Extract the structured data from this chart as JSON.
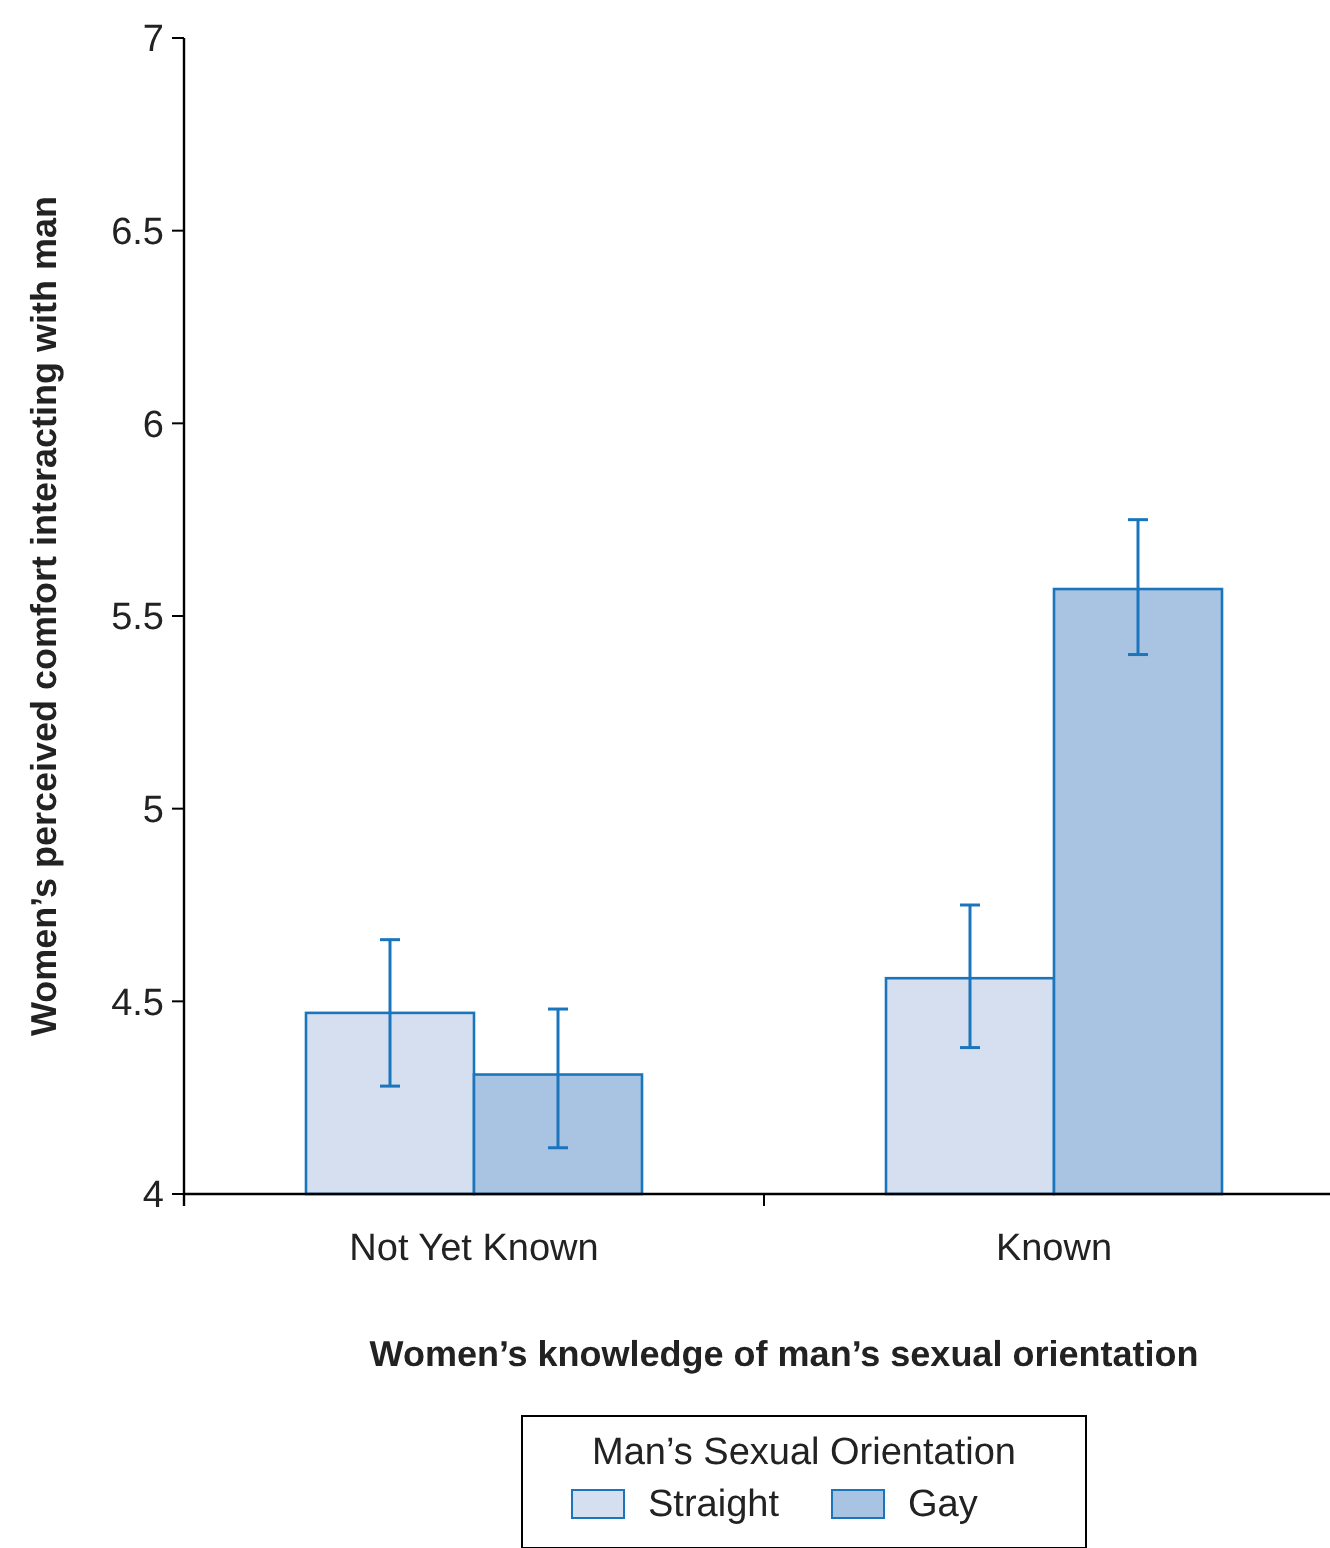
{
  "chart_data": {
    "type": "bar",
    "xlabel": "Women’s knowledge of man’s sexual orientation",
    "ylabel": "Women’s perceived comfort interacting with man",
    "legend_title": "Man’s Sexual Orientation",
    "legend": "bottom",
    "grid": false,
    "categories": [
      "Not Yet Known",
      "Known"
    ],
    "ylim": [
      4,
      7
    ],
    "yticks": [
      4,
      4.5,
      5,
      5.5,
      6,
      6.5,
      7
    ],
    "series": [
      {
        "name": "Straight",
        "color": "#d6dff0",
        "values": [
          4.47,
          4.56
        ],
        "errors": [
          [
            4.28,
            4.66
          ],
          [
            4.38,
            4.75
          ]
        ]
      },
      {
        "name": "Gay",
        "color": "#a9c3e3",
        "values": [
          4.31,
          5.57
        ],
        "errors": [
          [
            4.12,
            4.48
          ],
          [
            5.4,
            5.75
          ]
        ]
      }
    ]
  }
}
